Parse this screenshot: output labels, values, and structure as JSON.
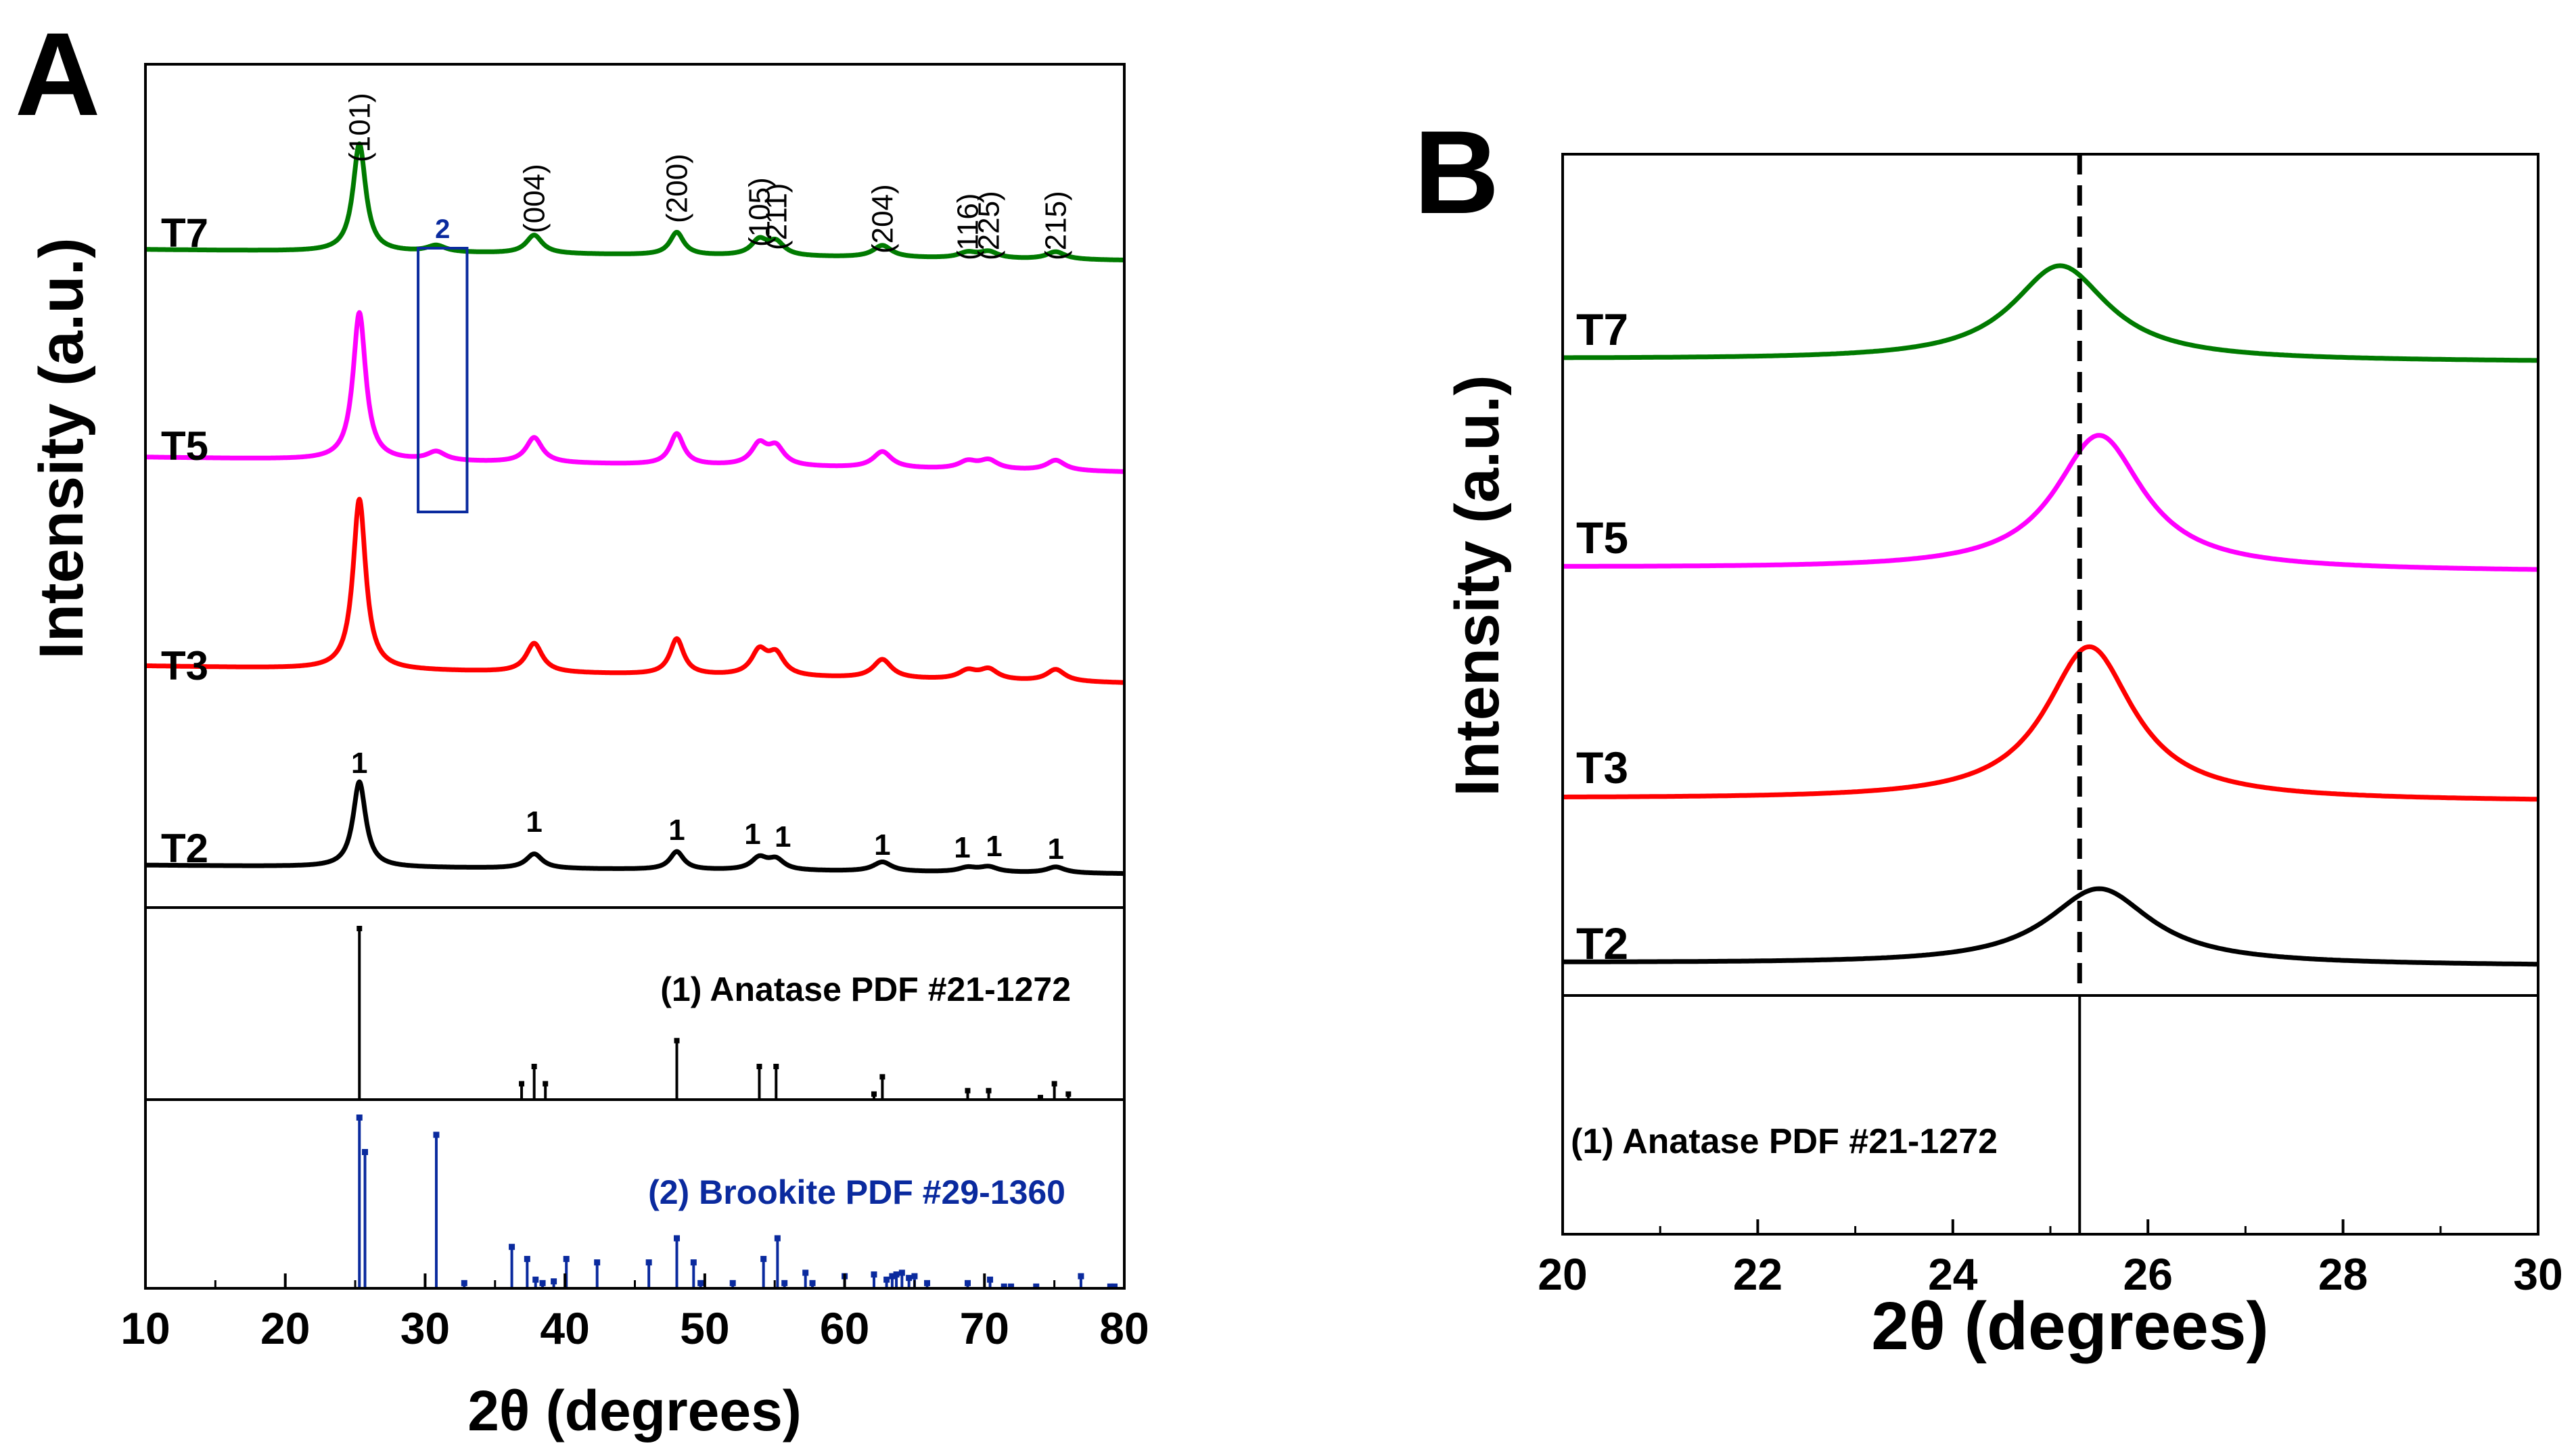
{
  "chart_data": [
    {
      "panel_label": "A",
      "type": "line",
      "xlabel": "2θ (degrees)",
      "ylabel": "Intensity (a.u.)",
      "xlim": [
        10,
        80
      ],
      "x_ticks": [
        "10",
        "20",
        "30",
        "40",
        "50",
        "60",
        "70",
        "80"
      ],
      "background": 0.1,
      "peaks": [
        {
          "x": 25.3,
          "height": 1.0,
          "width": 0.55
        },
        {
          "x": 30.8,
          "height": 0.06,
          "width": 0.8
        },
        {
          "x": 37.8,
          "height": 0.17,
          "width": 0.7
        },
        {
          "x": 48.0,
          "height": 0.21,
          "width": 0.6
        },
        {
          "x": 53.9,
          "height": 0.14,
          "width": 0.7
        },
        {
          "x": 55.1,
          "height": 0.12,
          "width": 0.7
        },
        {
          "x": 62.7,
          "height": 0.11,
          "width": 0.8
        },
        {
          "x": 68.8,
          "height": 0.05,
          "width": 0.8
        },
        {
          "x": 70.3,
          "height": 0.06,
          "width": 0.8
        },
        {
          "x": 75.1,
          "height": 0.07,
          "width": 0.8
        }
      ],
      "series": [
        {
          "name": "T7",
          "color": "#007a00",
          "peak_scale": 0.38,
          "brookite": true
        },
        {
          "name": "T5",
          "color": "#ff00ff",
          "peak_scale": 0.52,
          "brookite": true
        },
        {
          "name": "T3",
          "color": "#ff0000",
          "peak_scale": 0.6,
          "brookite": false
        },
        {
          "name": "T2",
          "color": "#000000",
          "peak_scale": 0.3,
          "brookite": false
        }
      ],
      "hkl_labels": [
        {
          "x": 25.3,
          "label": "(101)"
        },
        {
          "x": 37.8,
          "label": "(004)"
        },
        {
          "x": 48.0,
          "label": "(200)"
        },
        {
          "x": 53.9,
          "label": "(105)"
        },
        {
          "x": 55.1,
          "label": "(211)"
        },
        {
          "x": 62.7,
          "label": "(204)"
        },
        {
          "x": 68.8,
          "label": "(116)"
        },
        {
          "x": 70.3,
          "label": "(225)"
        },
        {
          "x": 75.1,
          "label": "(215)"
        }
      ],
      "anatase_markers": [
        {
          "x": 25.3,
          "label": "1"
        },
        {
          "x": 37.8,
          "label": "1"
        },
        {
          "x": 48.0,
          "label": "1"
        },
        {
          "x": 53.9,
          "label": "1"
        },
        {
          "x": 55.1,
          "label": "1"
        },
        {
          "x": 62.7,
          "label": "1"
        },
        {
          "x": 68.8,
          "label": "1"
        },
        {
          "x": 70.3,
          "label": "1"
        },
        {
          "x": 75.1,
          "label": "1"
        }
      ],
      "brookite_box": {
        "x_from": 29.5,
        "x_to": 33.0,
        "label": "2",
        "color": "#0a2a9e"
      },
      "reference_patterns": [
        {
          "name": "(1) Anatase PDF #21-1272",
          "color": "#000000",
          "sticks": [
            {
              "x": 25.3,
              "intensity": 100
            },
            {
              "x": 36.9,
              "intensity": 10
            },
            {
              "x": 37.8,
              "intensity": 20
            },
            {
              "x": 38.6,
              "intensity": 10
            },
            {
              "x": 48.0,
              "intensity": 35
            },
            {
              "x": 53.9,
              "intensity": 20
            },
            {
              "x": 55.1,
              "intensity": 20
            },
            {
              "x": 62.1,
              "intensity": 4
            },
            {
              "x": 62.7,
              "intensity": 14
            },
            {
              "x": 68.8,
              "intensity": 6
            },
            {
              "x": 70.3,
              "intensity": 6
            },
            {
              "x": 74.0,
              "intensity": 2
            },
            {
              "x": 75.0,
              "intensity": 10
            },
            {
              "x": 76.0,
              "intensity": 4
            }
          ]
        },
        {
          "name": "(2) Brookite PDF #29-1360",
          "color": "#0a2a9e",
          "sticks": [
            {
              "x": 25.3,
              "intensity": 100
            },
            {
              "x": 25.7,
              "intensity": 80
            },
            {
              "x": 30.8,
              "intensity": 90
            },
            {
              "x": 32.8,
              "intensity": 4
            },
            {
              "x": 36.2,
              "intensity": 25
            },
            {
              "x": 37.3,
              "intensity": 18
            },
            {
              "x": 37.9,
              "intensity": 6
            },
            {
              "x": 38.4,
              "intensity": 4
            },
            {
              "x": 39.2,
              "intensity": 5
            },
            {
              "x": 40.1,
              "intensity": 18
            },
            {
              "x": 42.3,
              "intensity": 16
            },
            {
              "x": 46.0,
              "intensity": 16
            },
            {
              "x": 48.0,
              "intensity": 30
            },
            {
              "x": 49.2,
              "intensity": 16
            },
            {
              "x": 49.7,
              "intensity": 4
            },
            {
              "x": 52.0,
              "intensity": 4
            },
            {
              "x": 54.2,
              "intensity": 18
            },
            {
              "x": 55.2,
              "intensity": 30
            },
            {
              "x": 55.7,
              "intensity": 4
            },
            {
              "x": 57.2,
              "intensity": 10
            },
            {
              "x": 57.7,
              "intensity": 4
            },
            {
              "x": 60.0,
              "intensity": 8
            },
            {
              "x": 62.1,
              "intensity": 9
            },
            {
              "x": 63.0,
              "intensity": 6
            },
            {
              "x": 63.4,
              "intensity": 8
            },
            {
              "x": 63.7,
              "intensity": 9
            },
            {
              "x": 64.1,
              "intensity": 10
            },
            {
              "x": 64.6,
              "intensity": 7
            },
            {
              "x": 65.0,
              "intensity": 8
            },
            {
              "x": 65.9,
              "intensity": 4
            },
            {
              "x": 68.8,
              "intensity": 4
            },
            {
              "x": 70.4,
              "intensity": 6
            },
            {
              "x": 71.4,
              "intensity": 2
            },
            {
              "x": 71.9,
              "intensity": 2
            },
            {
              "x": 73.7,
              "intensity": 2
            },
            {
              "x": 76.9,
              "intensity": 8
            },
            {
              "x": 79.0,
              "intensity": 2
            },
            {
              "x": 79.3,
              "intensity": 2
            }
          ]
        }
      ]
    },
    {
      "panel_label": "B",
      "type": "line",
      "xlabel": "2θ (degrees)",
      "ylabel": "Intensity (a.u.)",
      "xlim": [
        20,
        30
      ],
      "x_ticks": [
        "20",
        "22",
        "24",
        "26",
        "28",
        "30"
      ],
      "reference_line_x": 25.3,
      "series": [
        {
          "name": "T7",
          "color": "#007a00",
          "peak_x": 25.1,
          "height": 1.0,
          "width": 0.6,
          "tail": 0.03
        },
        {
          "name": "T5",
          "color": "#ff00ff",
          "peak_x": 25.5,
          "height": 1.42,
          "width": 0.55,
          "tail": 0.04
        },
        {
          "name": "T3",
          "color": "#ff0000",
          "peak_x": 25.4,
          "height": 1.62,
          "width": 0.55,
          "tail": 0.03
        },
        {
          "name": "T2",
          "color": "#000000",
          "peak_x": 25.5,
          "height": 0.8,
          "width": 0.65,
          "tail": 0.03
        }
      ],
      "reference_patterns": [
        {
          "name": "(1) Anatase PDF #21-1272",
          "color": "#000000",
          "sticks": [
            {
              "x": 25.3,
              "intensity": 100
            }
          ]
        }
      ]
    }
  ]
}
